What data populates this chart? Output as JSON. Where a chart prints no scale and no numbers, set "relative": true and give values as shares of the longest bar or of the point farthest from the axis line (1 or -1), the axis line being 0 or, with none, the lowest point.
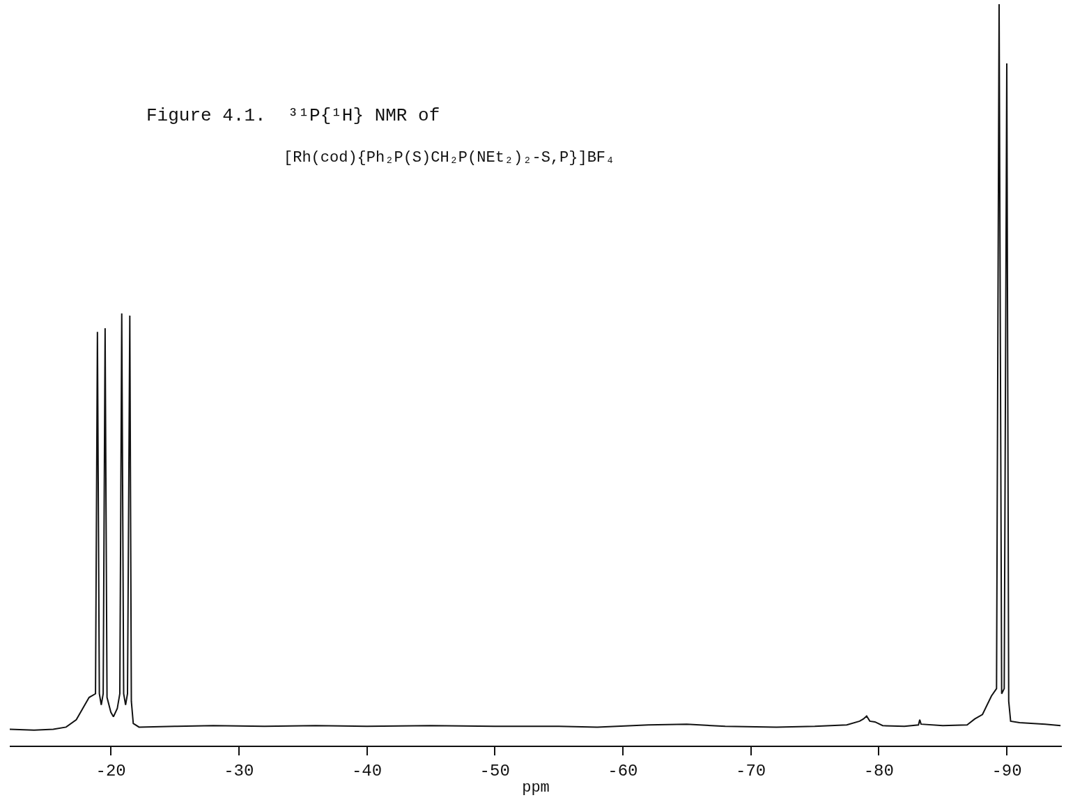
{
  "chart_data": {
    "type": "line",
    "title": "Figure 4.1.  ³¹P{¹H} NMR of",
    "subtitle": "[Rh(cod){Ph₂P(S)CH₂P(NEt₂)₂-S,P}]BF₄",
    "xlabel": "ppm",
    "relative": true,
    "xlim": [
      -12.1,
      -94.3
    ],
    "xticks": [
      -20,
      -30,
      -40,
      -50,
      -60,
      -70,
      -80,
      -90
    ],
    "marker": "none",
    "line_style": "solid",
    "tick_labels": "x",
    "series": [
      {
        "color": "#111111",
        "x": [
          -12.1,
          -14,
          -15.5,
          -16.5,
          -17.3,
          -17.8,
          -18.3,
          -18.8,
          -18.95,
          -19.1,
          -19.25,
          -19.4,
          -19.55,
          -19.7,
          -20.0,
          -20.2,
          -20.5,
          -20.7,
          -20.85,
          -21.0,
          -21.15,
          -21.3,
          -21.48,
          -21.6,
          -21.75,
          -22.2,
          -25,
          -28,
          -32,
          -36,
          -40,
          -45,
          -50,
          -55,
          -58,
          -62,
          -65,
          -68,
          -72,
          -75,
          -77.5,
          -78.5,
          -78.8,
          -79.05,
          -79.3,
          -79.7,
          -80.3,
          -82,
          -83.1,
          -83.2,
          -83.3,
          -85,
          -86.9,
          -87.5,
          -88.1,
          -88.8,
          -89.2,
          -89.4,
          -89.6,
          -89.8,
          -90.0,
          -90.15,
          -90.3,
          -91,
          -93,
          -94.2
        ],
        "values": [
          0.022,
          0.021,
          0.022,
          0.025,
          0.035,
          0.05,
          0.065,
          0.07,
          0.558,
          0.07,
          0.055,
          0.07,
          0.563,
          0.065,
          0.045,
          0.039,
          0.05,
          0.07,
          0.583,
          0.07,
          0.055,
          0.07,
          0.58,
          0.06,
          0.03,
          0.025,
          0.026,
          0.027,
          0.026,
          0.027,
          0.026,
          0.027,
          0.026,
          0.026,
          0.025,
          0.028,
          0.029,
          0.026,
          0.025,
          0.026,
          0.028,
          0.033,
          0.036,
          0.04,
          0.033,
          0.032,
          0.027,
          0.026,
          0.028,
          0.035,
          0.029,
          0.027,
          0.028,
          0.036,
          0.042,
          0.067,
          0.077,
          1,
          0.07,
          0.077,
          0.92,
          0.06,
          0.033,
          0.031,
          0.029,
          0.027
        ]
      }
    ]
  }
}
